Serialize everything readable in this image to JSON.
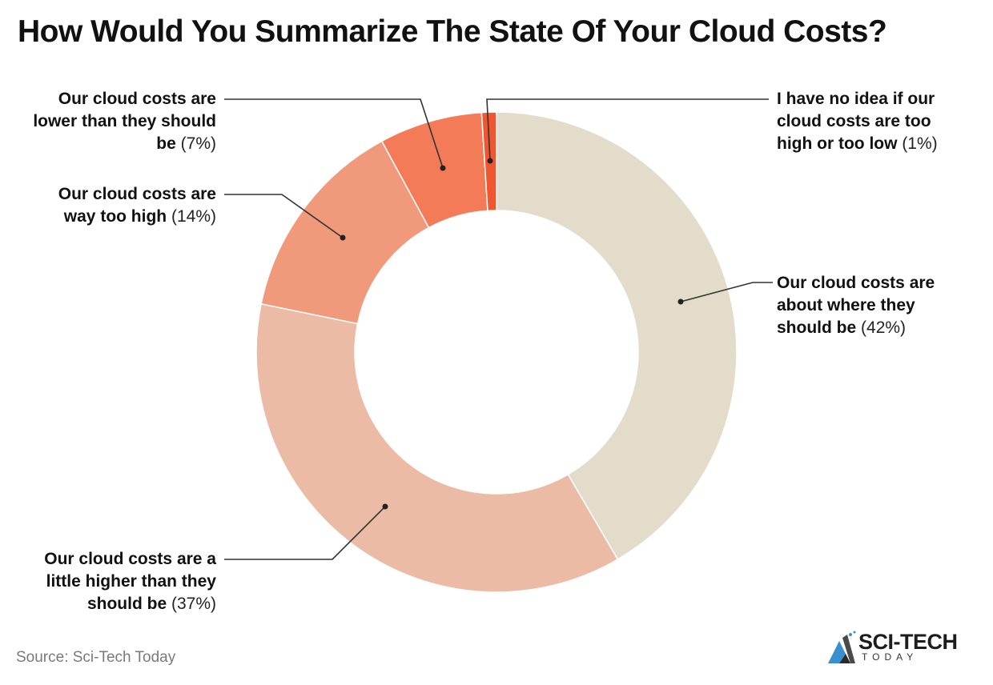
{
  "title": "How Would You Summarize The State Of Your Cloud Costs?",
  "source": "Source: Sci-Tech Today",
  "logo": {
    "main": "SCI-TECH",
    "sub": "TODAY"
  },
  "labels": [
    {
      "text": "Our cloud costs are about where they should be",
      "line1": "Our cloud costs are",
      "line2": "about where they",
      "line3": "should be",
      "pct": "(42%)"
    },
    {
      "text": "Our cloud costs are a little higher than they should be",
      "line1": "Our cloud costs are a",
      "line2": "little higher than they",
      "line3": "should be",
      "pct": "(37%)"
    },
    {
      "text": "Our cloud costs are way too high",
      "line1": "Our cloud costs are",
      "line2": "way too high",
      "pct": "(14%)"
    },
    {
      "text": "Our cloud costs are lower than they should be",
      "line1": "Our cloud costs are",
      "line2": "lower than they should",
      "line3": "be",
      "pct": "(7%)"
    },
    {
      "text": "I have no idea if our cloud costs are too high or too low",
      "line1": "I have no idea if our",
      "line2": "cloud costs are too",
      "line3": "high or too low",
      "pct": "(1%)"
    }
  ],
  "chart_data": {
    "type": "pie",
    "subtype": "donut",
    "title": "How Would You Summarize The State Of Your Cloud Costs?",
    "categories": [
      "Our cloud costs are about where they should be",
      "Our cloud costs are a little higher than they should be",
      "Our cloud costs are way too high",
      "Our cloud costs are lower than they should be",
      "I have no idea if our cloud costs are too high or too low"
    ],
    "values": [
      42,
      37,
      14,
      7,
      1
    ],
    "unit": "%",
    "colors": [
      "#e4dccb",
      "#ebbba5",
      "#f09a7b",
      "#f47b58",
      "#ef5733"
    ],
    "start_angle": "12 o'clock, clockwise",
    "legend": "direct labels with leader lines",
    "source": "Sci-Tech Today"
  }
}
